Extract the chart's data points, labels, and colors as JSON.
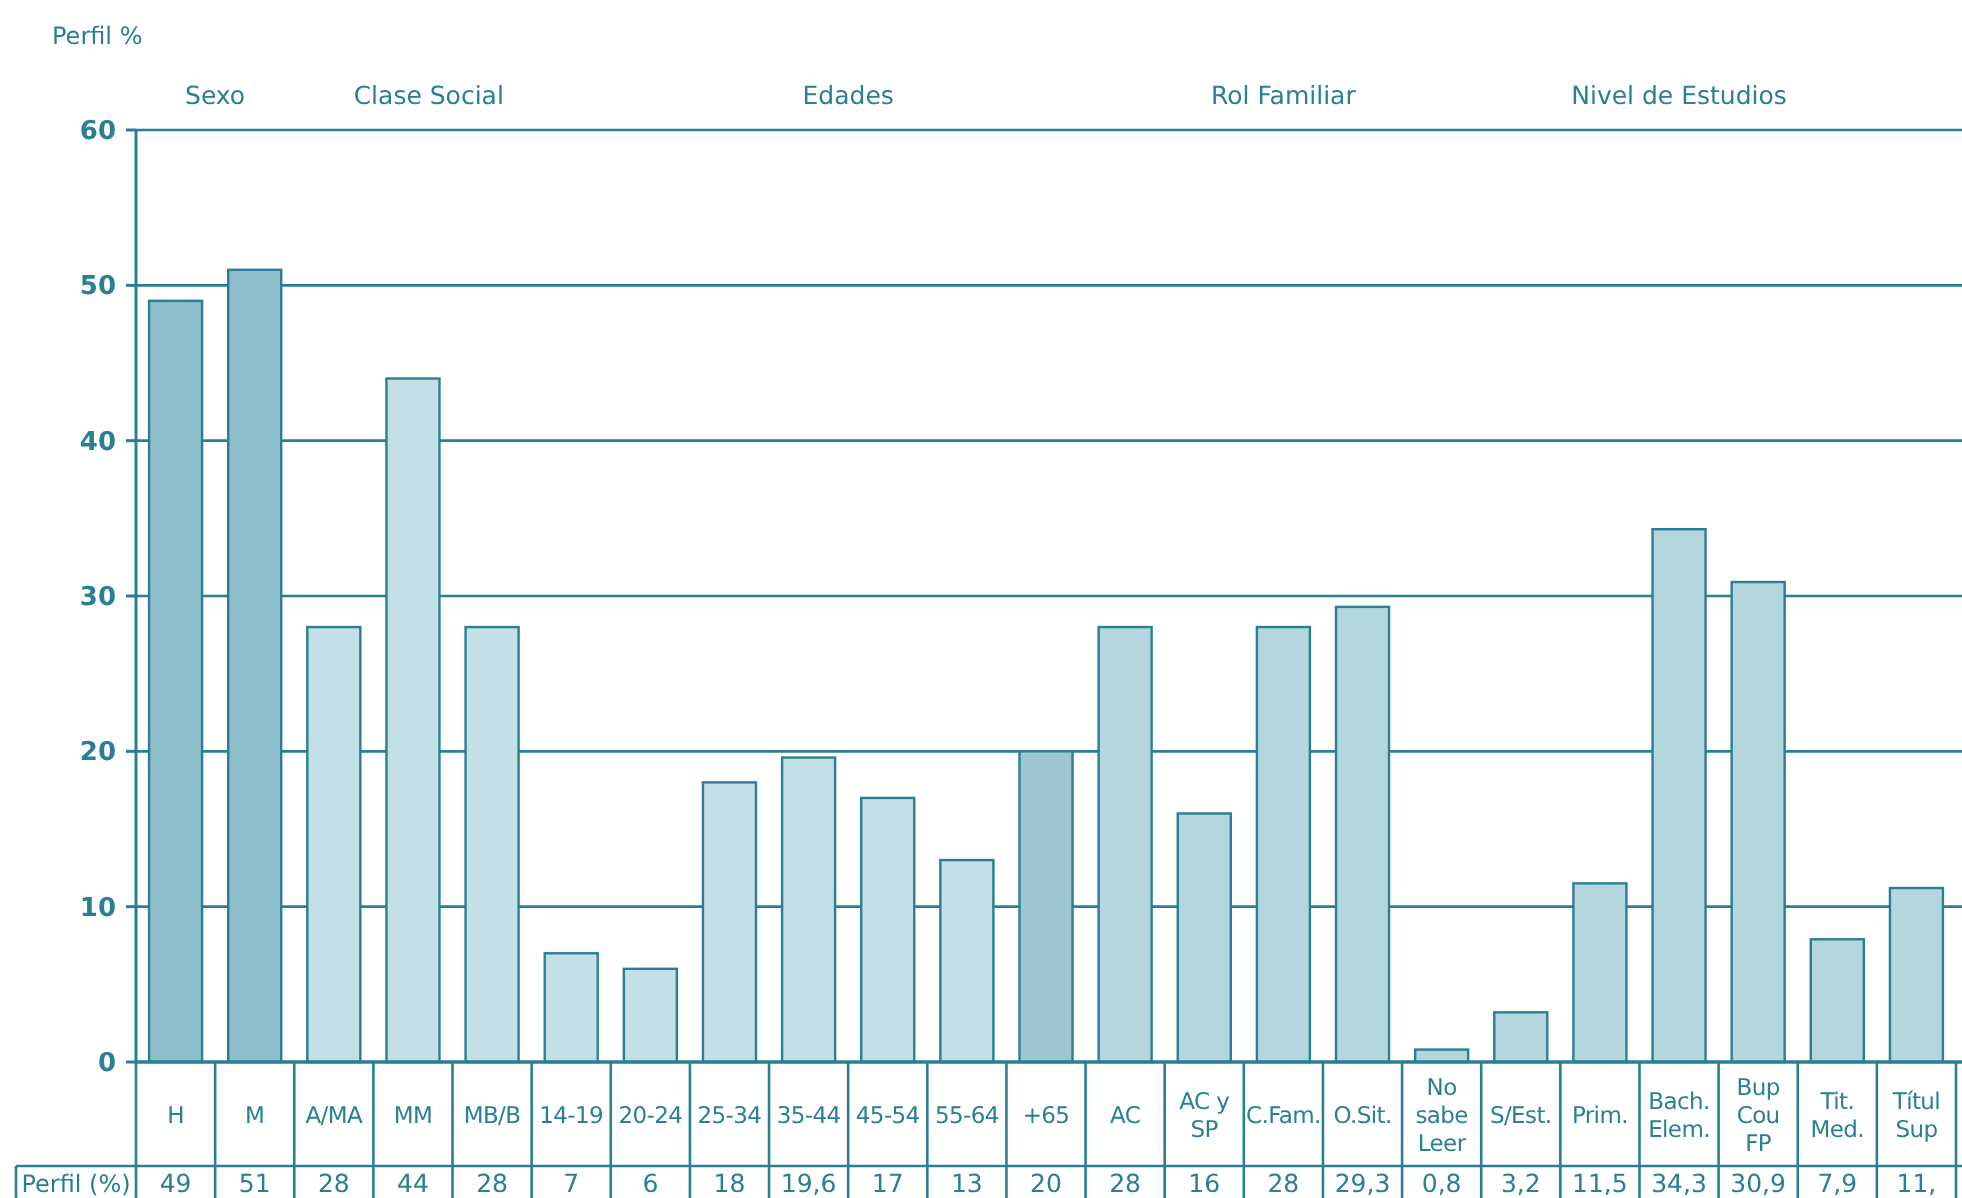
{
  "chart_data": {
    "type": "bar",
    "ylabel": "Perfil %",
    "categories": [
      "H",
      "M",
      "A/MA",
      "MM",
      "MB/B",
      "14-19",
      "20-24",
      "25-34",
      "35-44",
      "45-54",
      "55-64",
      "+65",
      "AC",
      "AC y SP",
      "C.Fam.",
      "O.Sit.",
      "No sabe Leer",
      "S/Est.",
      "Prim.",
      "Bach. Elem.",
      "Bup Cou FP",
      "Tit. Med.",
      "Títul Sup"
    ],
    "values": [
      49,
      51,
      28,
      44,
      28,
      7,
      6,
      18,
      19.6,
      17,
      13,
      20,
      28,
      16,
      28,
      29.3,
      0.8,
      3.2,
      11.5,
      34.3,
      30.9,
      7.9,
      11.2
    ],
    "value_labels": [
      "49",
      "51",
      "28",
      "44",
      "28",
      "7",
      "6",
      "18",
      "19,6",
      "17",
      "13",
      "20",
      "28",
      "16",
      "28",
      "29,3",
      "0,8",
      "3,2",
      "11,5",
      "34,3",
      "30,9",
      "7,9",
      "11,"
    ],
    "colors": [
      "#8dbecb",
      "#8dbecb",
      "#c3e0e7",
      "#c3e0e7",
      "#c3e0e7",
      "#c3e0e7",
      "#c3e0e7",
      "#c3e0e7",
      "#c3e0e7",
      "#c3e0e7",
      "#c3e0e7",
      "#9cc7d3",
      "#b3d6df",
      "#b3d6df",
      "#b3d6df",
      "#b3d6df",
      "#b3d6df",
      "#b3d6df",
      "#b3d6df",
      "#b3d6df",
      "#b3d6df",
      "#b3d6df",
      "#b3d6df"
    ],
    "ylim": [
      0,
      60
    ],
    "yticks": [
      0,
      10,
      20,
      30,
      40,
      50,
      60
    ],
    "grid": "y",
    "annotations": [
      "Sexo",
      "Clase Social",
      "Edades",
      "Rol Familiar",
      "Nivel de Estudios",
      "Perfil (%)"
    ]
  }
}
